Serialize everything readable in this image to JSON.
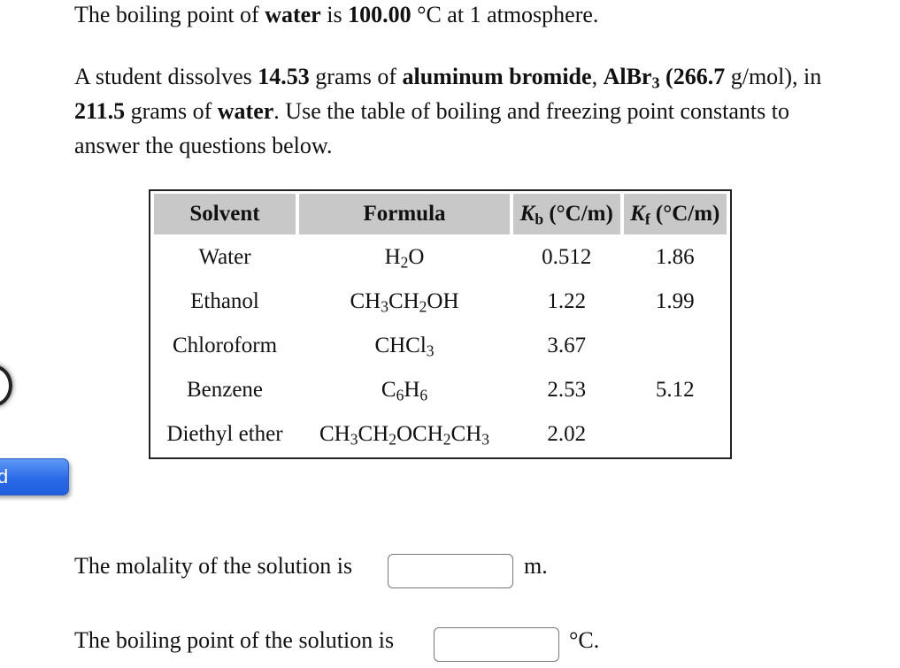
{
  "intro": {
    "boiling_prefix": "The boiling point of ",
    "boiling_bold1": "water",
    "boiling_mid": " is ",
    "boiling_bold2": "100.00",
    "boiling_suffix": " °C at 1 atmosphere."
  },
  "problem": {
    "p1": "A student dissolves ",
    "mass": "14.53",
    "p2": " grams of ",
    "compound": "aluminum bromide",
    "p3": ", ",
    "formula": "AlBr",
    "formula_sub": "3",
    "molar_mass": " (266.7",
    "p4": " g/mol), in",
    "solvent_mass": "211.5",
    "p5": " grams of ",
    "solvent": "water",
    "p6": ". Use the table of boiling and freezing point constants to",
    "p7": "answer the questions below."
  },
  "table": {
    "headers": {
      "solvent": "Solvent",
      "formula": "Formula",
      "kb": "K",
      "kb_sub": "b",
      "kb_unit": " (°C/m)",
      "kf": "K",
      "kf_sub": "f",
      "kf_unit": " (°C/m)"
    },
    "rows": [
      {
        "solvent": "Water",
        "formula": [
          [
            "H",
            "2"
          ],
          [
            "O",
            ""
          ]
        ],
        "kb": "0.512",
        "kf": "1.86"
      },
      {
        "solvent": "Ethanol",
        "formula": [
          [
            "CH",
            "3"
          ],
          [
            "CH",
            "2"
          ],
          [
            "OH",
            ""
          ]
        ],
        "kb": "1.22",
        "kf": "1.99"
      },
      {
        "solvent": "Chloroform",
        "formula": [
          [
            "CHCl",
            "3"
          ]
        ],
        "kb": "3.67",
        "kf": ""
      },
      {
        "solvent": "Benzene",
        "formula": [
          [
            "C",
            "6"
          ],
          [
            "H",
            "6"
          ]
        ],
        "kb": "2.53",
        "kf": "5.12"
      },
      {
        "solvent": "Diethyl ether",
        "formula": [
          [
            "CH",
            "3"
          ],
          [
            "CH",
            "2"
          ],
          [
            "OCH",
            "2"
          ],
          [
            "CH",
            "3"
          ]
        ],
        "kb": "2.02",
        "kf": ""
      }
    ]
  },
  "questions": {
    "molality_label": "The molality of the solution is",
    "molality_value": "",
    "molality_unit": "m.",
    "bp_label": "The boiling point of the solution is",
    "bp_value": "",
    "bp_unit": "°C."
  },
  "side": {
    "button_label": "d"
  }
}
